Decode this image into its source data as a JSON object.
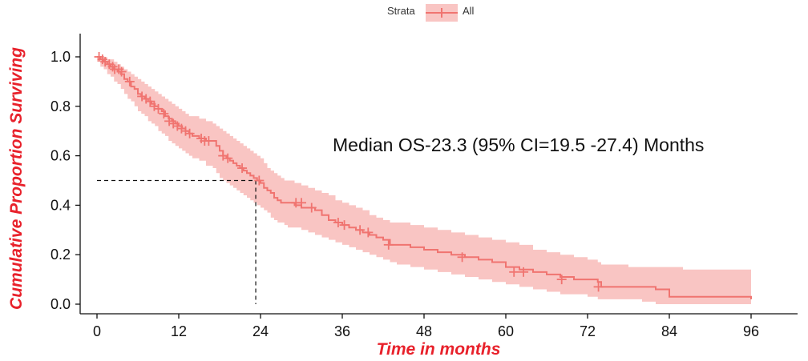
{
  "chart_data": {
    "type": "line",
    "subtype": "kaplan-meier survival curve with confidence band",
    "title": "",
    "xlabel": "Time in months",
    "ylabel": "Cumulative Proportion Surviving",
    "xlim": [
      0,
      96
    ],
    "ylim": [
      0,
      1
    ],
    "xticks": [
      "0",
      "12",
      "24",
      "36",
      "48",
      "60",
      "72",
      "84",
      "96"
    ],
    "yticks": [
      "0.0",
      "0.2",
      "0.4",
      "0.6",
      "0.8",
      "1.0"
    ],
    "grid": false,
    "legend": {
      "title": "Strata",
      "position": "top",
      "entries": [
        "All"
      ]
    },
    "annotation": "Median OS-23.3 (95% CI=19.5 -27.4) Months",
    "median": {
      "x": 23.3,
      "y": 0.5
    },
    "colors": {
      "line": "#f07470",
      "band": "#f9c5c3",
      "axis_title": "#e8212b"
    },
    "series": [
      {
        "name": "All",
        "x": [
          0,
          0.5,
          1,
          1.5,
          2,
          2.5,
          3,
          3.5,
          4,
          4.5,
          5,
          5.5,
          6,
          6.5,
          7,
          7.5,
          8,
          8.5,
          9,
          9.5,
          10,
          10.5,
          11,
          11.5,
          12,
          12.5,
          13,
          13.5,
          14,
          15,
          16,
          17,
          17.5,
          18,
          18.5,
          19,
          19.5,
          20,
          20.5,
          21,
          21.5,
          22,
          22.5,
          23,
          23.5,
          24,
          24.5,
          25,
          25.5,
          26,
          26.5,
          27,
          27.5,
          28,
          29,
          30,
          31,
          32,
          33,
          34,
          35,
          36,
          37,
          38,
          39,
          40,
          41,
          42,
          43,
          44,
          46,
          48,
          50,
          52,
          54,
          56,
          58,
          60,
          62,
          64,
          66,
          68,
          70,
          72,
          73.5,
          74,
          76,
          78,
          80,
          82,
          84,
          86,
          88,
          90,
          92,
          94,
          96
        ],
        "y": [
          1.0,
          0.99,
          0.98,
          0.97,
          0.96,
          0.95,
          0.94,
          0.93,
          0.91,
          0.9,
          0.88,
          0.87,
          0.85,
          0.84,
          0.83,
          0.82,
          0.81,
          0.8,
          0.79,
          0.78,
          0.76,
          0.75,
          0.74,
          0.73,
          0.72,
          0.71,
          0.7,
          0.69,
          0.68,
          0.67,
          0.66,
          0.66,
          0.64,
          0.62,
          0.6,
          0.59,
          0.58,
          0.57,
          0.56,
          0.55,
          0.54,
          0.53,
          0.52,
          0.51,
          0.5,
          0.49,
          0.47,
          0.46,
          0.45,
          0.43,
          0.42,
          0.41,
          0.41,
          0.41,
          0.4,
          0.39,
          0.39,
          0.38,
          0.36,
          0.34,
          0.33,
          0.32,
          0.31,
          0.3,
          0.29,
          0.28,
          0.27,
          0.26,
          0.24,
          0.24,
          0.23,
          0.22,
          0.21,
          0.2,
          0.19,
          0.18,
          0.17,
          0.15,
          0.14,
          0.13,
          0.12,
          0.11,
          0.1,
          0.1,
          0.09,
          0.07,
          0.07,
          0.07,
          0.07,
          0.06,
          0.03,
          0.03,
          0.03,
          0.03,
          0.03,
          0.03,
          0.02
        ],
        "lower": [
          1.0,
          0.98,
          0.96,
          0.95,
          0.93,
          0.92,
          0.9,
          0.89,
          0.87,
          0.85,
          0.83,
          0.82,
          0.8,
          0.78,
          0.77,
          0.76,
          0.74,
          0.73,
          0.72,
          0.7,
          0.69,
          0.68,
          0.66,
          0.65,
          0.64,
          0.63,
          0.62,
          0.61,
          0.6,
          0.59,
          0.58,
          0.56,
          0.55,
          0.53,
          0.51,
          0.5,
          0.49,
          0.48,
          0.47,
          0.46,
          0.45,
          0.44,
          0.43,
          0.42,
          0.41,
          0.4,
          0.39,
          0.38,
          0.37,
          0.35,
          0.34,
          0.33,
          0.33,
          0.32,
          0.31,
          0.31,
          0.3,
          0.29,
          0.28,
          0.27,
          0.26,
          0.25,
          0.24,
          0.23,
          0.22,
          0.21,
          0.2,
          0.19,
          0.18,
          0.17,
          0.16,
          0.15,
          0.14,
          0.13,
          0.12,
          0.11,
          0.1,
          0.09,
          0.08,
          0.07,
          0.06,
          0.05,
          0.04,
          0.04,
          0.03,
          0.02,
          0.02,
          0.02,
          0.02,
          0.01,
          0.0,
          0.0,
          0.0,
          0.0,
          0.0,
          0.0,
          0.0
        ],
        "upper": [
          1.0,
          1.0,
          1.0,
          0.99,
          0.99,
          0.98,
          0.97,
          0.96,
          0.95,
          0.94,
          0.93,
          0.92,
          0.91,
          0.9,
          0.89,
          0.88,
          0.87,
          0.86,
          0.85,
          0.84,
          0.83,
          0.82,
          0.81,
          0.8,
          0.79,
          0.78,
          0.77,
          0.76,
          0.76,
          0.75,
          0.74,
          0.73,
          0.72,
          0.71,
          0.7,
          0.69,
          0.68,
          0.67,
          0.66,
          0.65,
          0.64,
          0.63,
          0.62,
          0.61,
          0.6,
          0.59,
          0.57,
          0.55,
          0.54,
          0.53,
          0.52,
          0.51,
          0.5,
          0.5,
          0.49,
          0.48,
          0.47,
          0.46,
          0.45,
          0.44,
          0.42,
          0.41,
          0.4,
          0.39,
          0.38,
          0.36,
          0.35,
          0.34,
          0.33,
          0.33,
          0.32,
          0.31,
          0.3,
          0.29,
          0.28,
          0.27,
          0.26,
          0.25,
          0.24,
          0.22,
          0.21,
          0.2,
          0.19,
          0.18,
          0.17,
          0.16,
          0.16,
          0.15,
          0.15,
          0.15,
          0.15,
          0.14,
          0.14,
          0.14,
          0.14,
          0.14,
          0.14
        ],
        "censored": [
          [
            0.3,
            1.0
          ],
          [
            0.8,
            0.99
          ],
          [
            1.2,
            0.98
          ],
          [
            1.8,
            0.97
          ],
          [
            2.3,
            0.96
          ],
          [
            2.6,
            0.95
          ],
          [
            3.2,
            0.95
          ],
          [
            3.6,
            0.94
          ],
          [
            4.8,
            0.9
          ],
          [
            6.6,
            0.84
          ],
          [
            7.2,
            0.83
          ],
          [
            7.8,
            0.82
          ],
          [
            8.4,
            0.8
          ],
          [
            9.0,
            0.79
          ],
          [
            9.8,
            0.77
          ],
          [
            10.6,
            0.74
          ],
          [
            11.2,
            0.73
          ],
          [
            11.8,
            0.72
          ],
          [
            12.4,
            0.71
          ],
          [
            13.0,
            0.7
          ],
          [
            13.6,
            0.69
          ],
          [
            15.3,
            0.67
          ],
          [
            15.8,
            0.66
          ],
          [
            16.4,
            0.66
          ],
          [
            18.5,
            0.6
          ],
          [
            19.2,
            0.59
          ],
          [
            21.3,
            0.55
          ],
          [
            23.8,
            0.5
          ],
          [
            29.2,
            0.41
          ],
          [
            30.0,
            0.41
          ],
          [
            31.5,
            0.39
          ],
          [
            35.4,
            0.33
          ],
          [
            36.3,
            0.32
          ],
          [
            38.6,
            0.3
          ],
          [
            39.8,
            0.29
          ],
          [
            42.8,
            0.24
          ],
          [
            53.6,
            0.19
          ],
          [
            61.2,
            0.13
          ],
          [
            62.6,
            0.13
          ],
          [
            68.2,
            0.1
          ],
          [
            73.6,
            0.07
          ]
        ]
      }
    ]
  }
}
